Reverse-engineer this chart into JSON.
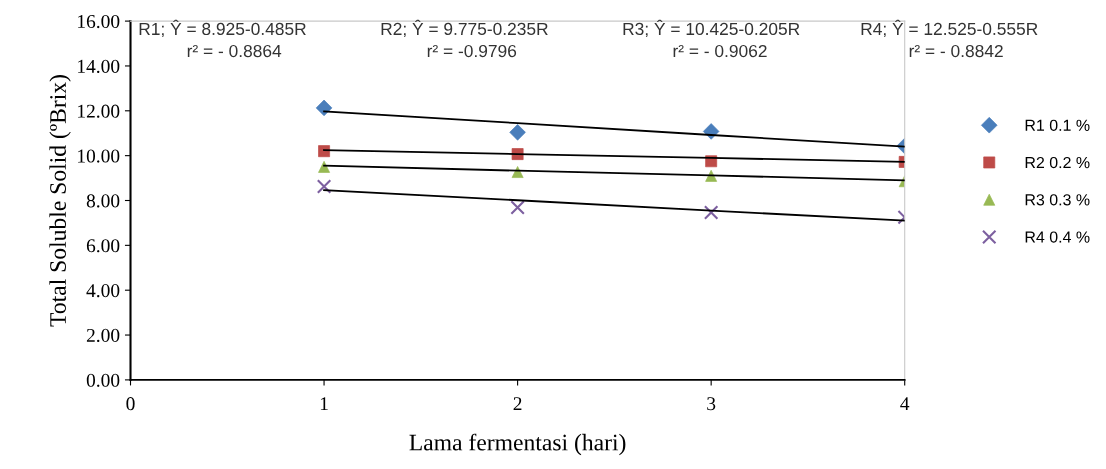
{
  "chart_data": {
    "type": "scatter",
    "xlabel": "Lama fermentasi (hari)",
    "ylabel": "Total Soluble Solid (ºBrix)",
    "x": [
      1,
      2,
      3,
      4
    ],
    "series": [
      {
        "name": "R1 0.1 %",
        "color": "#4a7ebb",
        "marker": "diamond",
        "values": [
          12.13,
          11.04,
          11.08,
          10.43
        ]
      },
      {
        "name": "R2 0.2 %",
        "color": "#be4b48",
        "marker": "square",
        "values": [
          10.2,
          10.07,
          9.75,
          9.72
        ]
      },
      {
        "name": "R3 0.3 %",
        "color": "#98b954",
        "marker": "triangle",
        "values": [
          9.5,
          9.27,
          9.1,
          8.86
        ]
      },
      {
        "name": "R4 0.4 %",
        "color": "#7d60a0",
        "marker": "cross",
        "values": [
          8.62,
          7.69,
          7.46,
          7.25
        ]
      },
      {
        "type": "line",
        "color": "#000000",
        "marker": "none",
        "values": [
          11.97,
          11.45,
          10.92,
          10.4
        ]
      },
      {
        "type": "line",
        "color": "#000000",
        "marker": "none",
        "values": [
          10.25,
          10.07,
          9.9,
          9.72
        ]
      },
      {
        "type": "line",
        "color": "#000000",
        "marker": "none",
        "values": [
          9.55,
          9.33,
          9.12,
          8.9
        ]
      },
      {
        "type": "line",
        "color": "#000000",
        "marker": "none",
        "values": [
          8.46,
          8.01,
          7.55,
          7.1
        ]
      }
    ],
    "xlim": [
      0,
      4
    ],
    "xticks": [
      0,
      1,
      2,
      3,
      4
    ],
    "ylim": [
      0,
      16
    ],
    "yticks": [
      {
        "value": 0,
        "label": "0.00"
      },
      {
        "value": 2,
        "label": "2.00"
      },
      {
        "value": 4,
        "label": "4.00"
      },
      {
        "value": 6,
        "label": "6.00"
      },
      {
        "value": 8,
        "label": "8.00"
      },
      {
        "value": 10,
        "label": "10.00"
      },
      {
        "value": 12,
        "label": "12.00"
      },
      {
        "value": 14,
        "label": "14.00"
      },
      {
        "value": 16,
        "label": "16.00"
      }
    ],
    "annotations": [
      "R1; Ŷ = 8.925-0.485R",
      "r² = - 0.8864",
      "R2; Ŷ = 9.775-0.235R",
      "r² = -0.9796",
      "R3; Ŷ = 10.425-0.205R",
      "r² = - 0.9062",
      "R4; Ŷ = 12.525-0.555R",
      "r² = - 0.8842"
    ],
    "grid": false,
    "legend": "right"
  }
}
